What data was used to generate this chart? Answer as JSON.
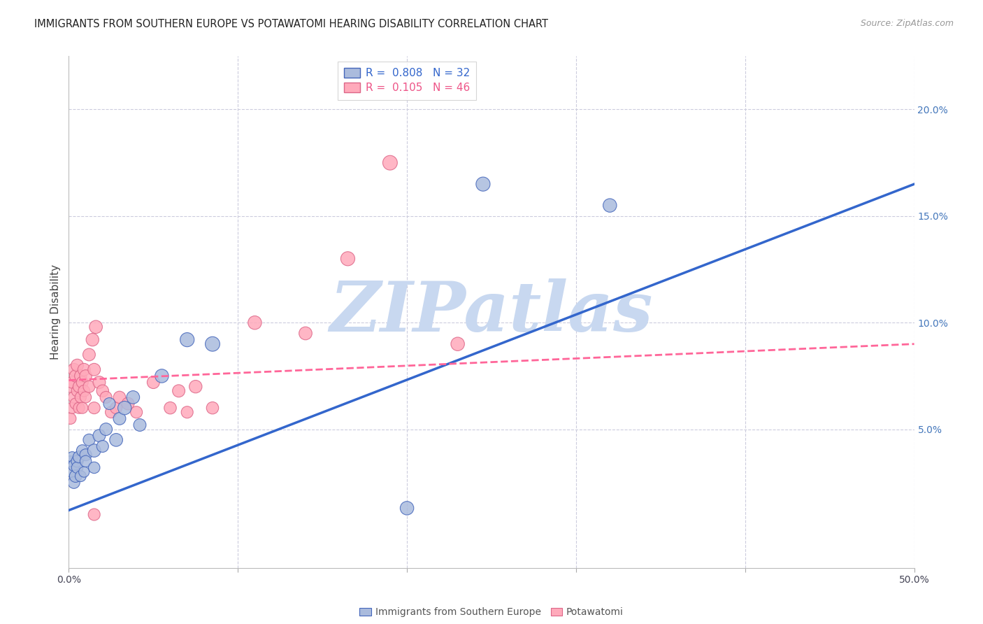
{
  "title": "IMMIGRANTS FROM SOUTHERN EUROPE VS POTAWATOMI HEARING DISABILITY CORRELATION CHART",
  "source": "Source: ZipAtlas.com",
  "ylabel": "Hearing Disability",
  "xlim": [
    0.0,
    0.5
  ],
  "ylim": [
    -0.015,
    0.225
  ],
  "xticks": [
    0.0,
    0.1,
    0.2,
    0.3,
    0.4,
    0.5
  ],
  "xtick_labels": [
    "0.0%",
    "",
    "",
    "",
    "",
    "50.0%"
  ],
  "yticks_right": [
    0.05,
    0.1,
    0.15,
    0.2
  ],
  "ytick_labels_right": [
    "5.0%",
    "10.0%",
    "15.0%",
    "20.0%"
  ],
  "legend1_R": "0.808",
  "legend1_N": "32",
  "legend2_R": "0.105",
  "legend2_N": "46",
  "blue_fill": "#AABBDD",
  "blue_edge": "#4466BB",
  "pink_fill": "#FFAABB",
  "pink_edge": "#DD6688",
  "blue_line": "#3366CC",
  "pink_line": "#FF6699",
  "watermark_color": "#C8D8F0",
  "bg_color": "#FFFFFF",
  "grid_color": "#CCCCDD",
  "blue_pts_x": [
    0.001,
    0.002,
    0.002,
    0.003,
    0.003,
    0.004,
    0.005,
    0.005,
    0.006,
    0.007,
    0.008,
    0.009,
    0.01,
    0.01,
    0.012,
    0.015,
    0.015,
    0.018,
    0.02,
    0.022,
    0.024,
    0.028,
    0.03,
    0.033,
    0.038,
    0.042,
    0.055,
    0.07,
    0.085,
    0.2,
    0.245,
    0.32
  ],
  "blue_pts_y": [
    0.035,
    0.03,
    0.037,
    0.025,
    0.033,
    0.028,
    0.035,
    0.032,
    0.037,
    0.028,
    0.04,
    0.03,
    0.038,
    0.035,
    0.045,
    0.04,
    0.032,
    0.047,
    0.042,
    0.05,
    0.062,
    0.045,
    0.055,
    0.06,
    0.065,
    0.052,
    0.075,
    0.092,
    0.09,
    0.013,
    0.165,
    0.155
  ],
  "blue_pts_s": [
    120,
    140,
    120,
    150,
    140,
    160,
    150,
    140,
    150,
    130,
    145,
    120,
    150,
    140,
    150,
    180,
    140,
    165,
    150,
    165,
    150,
    180,
    165,
    195,
    180,
    165,
    195,
    210,
    225,
    195,
    210,
    195
  ],
  "pink_pts_x": [
    0.001,
    0.001,
    0.002,
    0.002,
    0.003,
    0.003,
    0.004,
    0.004,
    0.005,
    0.005,
    0.006,
    0.006,
    0.007,
    0.007,
    0.008,
    0.008,
    0.009,
    0.009,
    0.01,
    0.01,
    0.012,
    0.012,
    0.014,
    0.015,
    0.015,
    0.016,
    0.018,
    0.02,
    0.022,
    0.025,
    0.028,
    0.03,
    0.035,
    0.04,
    0.05,
    0.06,
    0.065,
    0.07,
    0.075,
    0.085,
    0.11,
    0.14,
    0.165,
    0.19,
    0.015,
    0.23
  ],
  "pink_pts_y": [
    0.07,
    0.055,
    0.072,
    0.06,
    0.078,
    0.065,
    0.075,
    0.062,
    0.08,
    0.068,
    0.07,
    0.06,
    0.075,
    0.065,
    0.072,
    0.06,
    0.078,
    0.068,
    0.075,
    0.065,
    0.085,
    0.07,
    0.092,
    0.06,
    0.078,
    0.098,
    0.072,
    0.068,
    0.065,
    0.058,
    0.06,
    0.065,
    0.062,
    0.058,
    0.072,
    0.06,
    0.068,
    0.058,
    0.07,
    0.06,
    0.1,
    0.095,
    0.13,
    0.175,
    0.01,
    0.09
  ],
  "pink_pts_s": [
    150,
    135,
    150,
    135,
    165,
    143,
    158,
    135,
    165,
    143,
    150,
    135,
    158,
    135,
    150,
    135,
    165,
    143,
    158,
    135,
    165,
    150,
    173,
    150,
    165,
    180,
    165,
    158,
    150,
    143,
    150,
    158,
    165,
    150,
    165,
    158,
    165,
    150,
    173,
    158,
    195,
    180,
    210,
    225,
    150,
    195
  ],
  "blue_trend_x": [
    0.0,
    0.5
  ],
  "blue_trend_y": [
    0.012,
    0.165
  ],
  "pink_trend_x": [
    0.0,
    0.5
  ],
  "pink_trend_y": [
    0.073,
    0.09
  ],
  "legend_text_blue": "#3366CC",
  "legend_text_pink": "#EE5588"
}
